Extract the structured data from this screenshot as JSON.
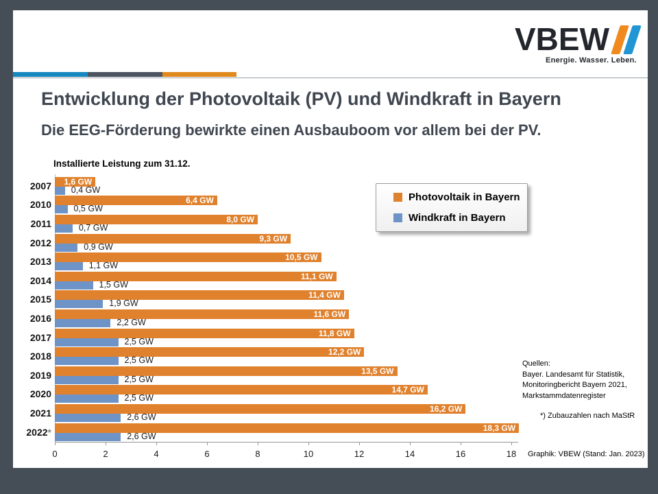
{
  "logo": {
    "text": "VBEW",
    "tagline": "Energie. Wasser. Leben."
  },
  "title": "Entwicklung der Photovoltaik (PV) und Windkraft in Bayern",
  "subtitle": "Die EEG-Förderung bewirkte einen Ausbauboom vor allem bei der PV.",
  "chart_data": {
    "type": "bar",
    "orientation": "horizontal",
    "title": "Installierte Leistung zum 31.12.",
    "unit": "GW",
    "categories": [
      "2007",
      "2010",
      "2011",
      "2012",
      "2013",
      "2014",
      "2015",
      "2016",
      "2017",
      "2018",
      "2019",
      "2020",
      "2021",
      "2022*"
    ],
    "series": [
      {
        "name": "Photovoltaik in Bayern",
        "color": "#E0812D",
        "values": [
          1.6,
          6.4,
          8.0,
          9.3,
          10.5,
          11.1,
          11.4,
          11.6,
          11.8,
          12.2,
          13.5,
          14.7,
          16.2,
          18.3
        ],
        "labels": [
          "1,6 GW",
          "6,4 GW",
          "8,0 GW",
          "9,3 GW",
          "10,5 GW",
          "11,1 GW",
          "11,4 GW",
          "11,6 GW",
          "11,8 GW",
          "12,2 GW",
          "13,5 GW",
          "14,7 GW",
          "16,2 GW",
          "18,3 GW"
        ]
      },
      {
        "name": "Windkraft in Bayern",
        "color": "#6E93C7",
        "values": [
          0.4,
          0.5,
          0.7,
          0.9,
          1.1,
          1.5,
          1.9,
          2.2,
          2.5,
          2.5,
          2.5,
          2.5,
          2.6,
          2.6
        ],
        "labels": [
          "0,4 GW",
          "0,5 GW",
          "0,7 GW",
          "0,9 GW",
          "1,1 GW",
          "1,5 GW",
          "1,9 GW",
          "2,2 GW",
          "2,5 GW",
          "2,5 GW",
          "2,5 GW",
          "2,5 GW",
          "2,6 GW",
          "2,6 GW"
        ]
      }
    ],
    "x_ticks": [
      "0",
      "2",
      "4",
      "6",
      "8",
      "10",
      "12",
      "14",
      "16",
      "18"
    ],
    "xlim": [
      0,
      18.6
    ],
    "grid": false,
    "legend_position": "inside-upper-right"
  },
  "sources": {
    "lines": [
      "Quellen:",
      "Bayer. Landesamt für Statistik,",
      "Monitoringbericht Bayern 2021,",
      "Markstammdatenregister"
    ]
  },
  "footnote": "*) Zubauzahlen nach MaStR",
  "credit": "Graphik: VBEW (Stand: Jan. 2023)",
  "colors": {
    "frame": "#454D57",
    "stripe_blue": "#1787C0",
    "stripe_gray": "#4B5460",
    "stripe_orange": "#E08A1E",
    "logo_slash_orange": "#F08A1F",
    "logo_slash_blue": "#2196D3",
    "title_text": "#3F4650"
  }
}
